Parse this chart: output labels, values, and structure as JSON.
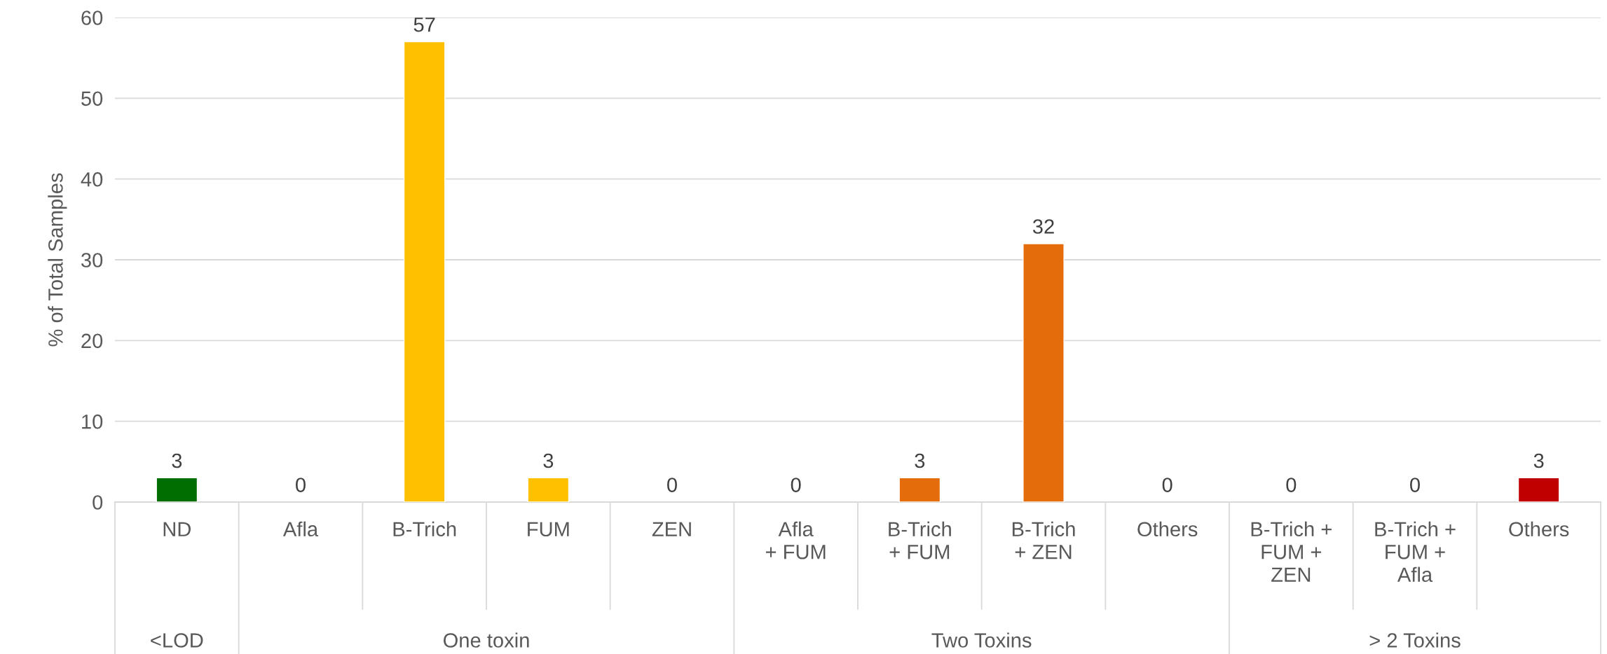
{
  "chart_data": {
    "type": "bar",
    "ylabel": "% of Total Samples",
    "categories": [
      "ND",
      "Afla",
      "B-Trich",
      "FUM",
      "ZEN",
      "Afla\n+ FUM",
      "B-Trich\n+ FUM",
      "B-Trich\n+ ZEN",
      "Others",
      "B-Trich +\nFUM +\nZEN",
      "B-Trich +\nFUM +\nAfla",
      "Others"
    ],
    "values": [
      3,
      0,
      57,
      3,
      0,
      0,
      3,
      32,
      0,
      0,
      0,
      3
    ],
    "colors": [
      "#006e00",
      null,
      "#ffc000",
      "#ffc000",
      null,
      null,
      "#e46c0a",
      "#e46c0a",
      null,
      null,
      null,
      "#c00000"
    ],
    "data_labels": true,
    "ylim": [
      0,
      60
    ],
    "yticks": [
      0,
      10,
      20,
      30,
      40,
      50,
      60
    ],
    "grid": "y",
    "annotations": [
      "<LOD",
      "One toxin",
      "Two Toxins",
      "> 2 Toxins"
    ]
  }
}
